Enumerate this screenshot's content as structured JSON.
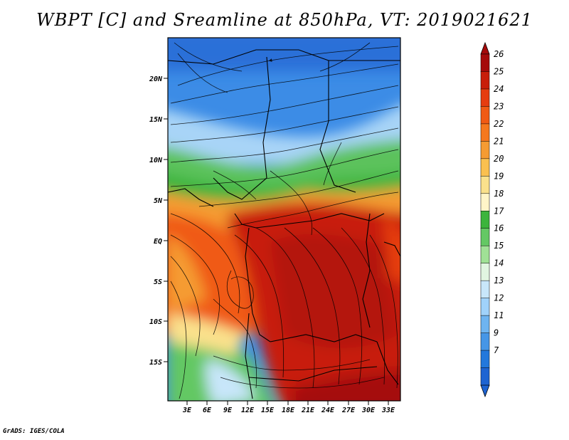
{
  "title": "WBPT [C] and Sreamline at 850hPa, VT: 2019021621",
  "credit": "GrADS: IGES/COLA",
  "lat_ticks": [
    "20N",
    "15N",
    "10N",
    "5N",
    "EQ",
    "5S",
    "10S",
    "15S"
  ],
  "lon_ticks": [
    "3E",
    "6E",
    "9E",
    "12E",
    "15E",
    "18E",
    "21E",
    "24E",
    "27E",
    "30E",
    "33E"
  ],
  "colorbar": {
    "labels": [
      "26",
      "25",
      "24",
      "23",
      "22",
      "21",
      "20",
      "19",
      "18",
      "17",
      "16",
      "15",
      "14",
      "13",
      "12",
      "11",
      "9",
      "7"
    ],
    "colors": [
      "#a50a0a",
      "#c81e0a",
      "#e63c0f",
      "#f05a14",
      "#f5781e",
      "#f59b32",
      "#fac050",
      "#fae18c",
      "#fff5c8",
      "#3cb43c",
      "#64c864",
      "#a0e196",
      "#e1f5e1",
      "#c8e6fa",
      "#a0d2fa",
      "#6eb4f0",
      "#4696e6",
      "#2378dc",
      "#1e64d2"
    ]
  }
}
